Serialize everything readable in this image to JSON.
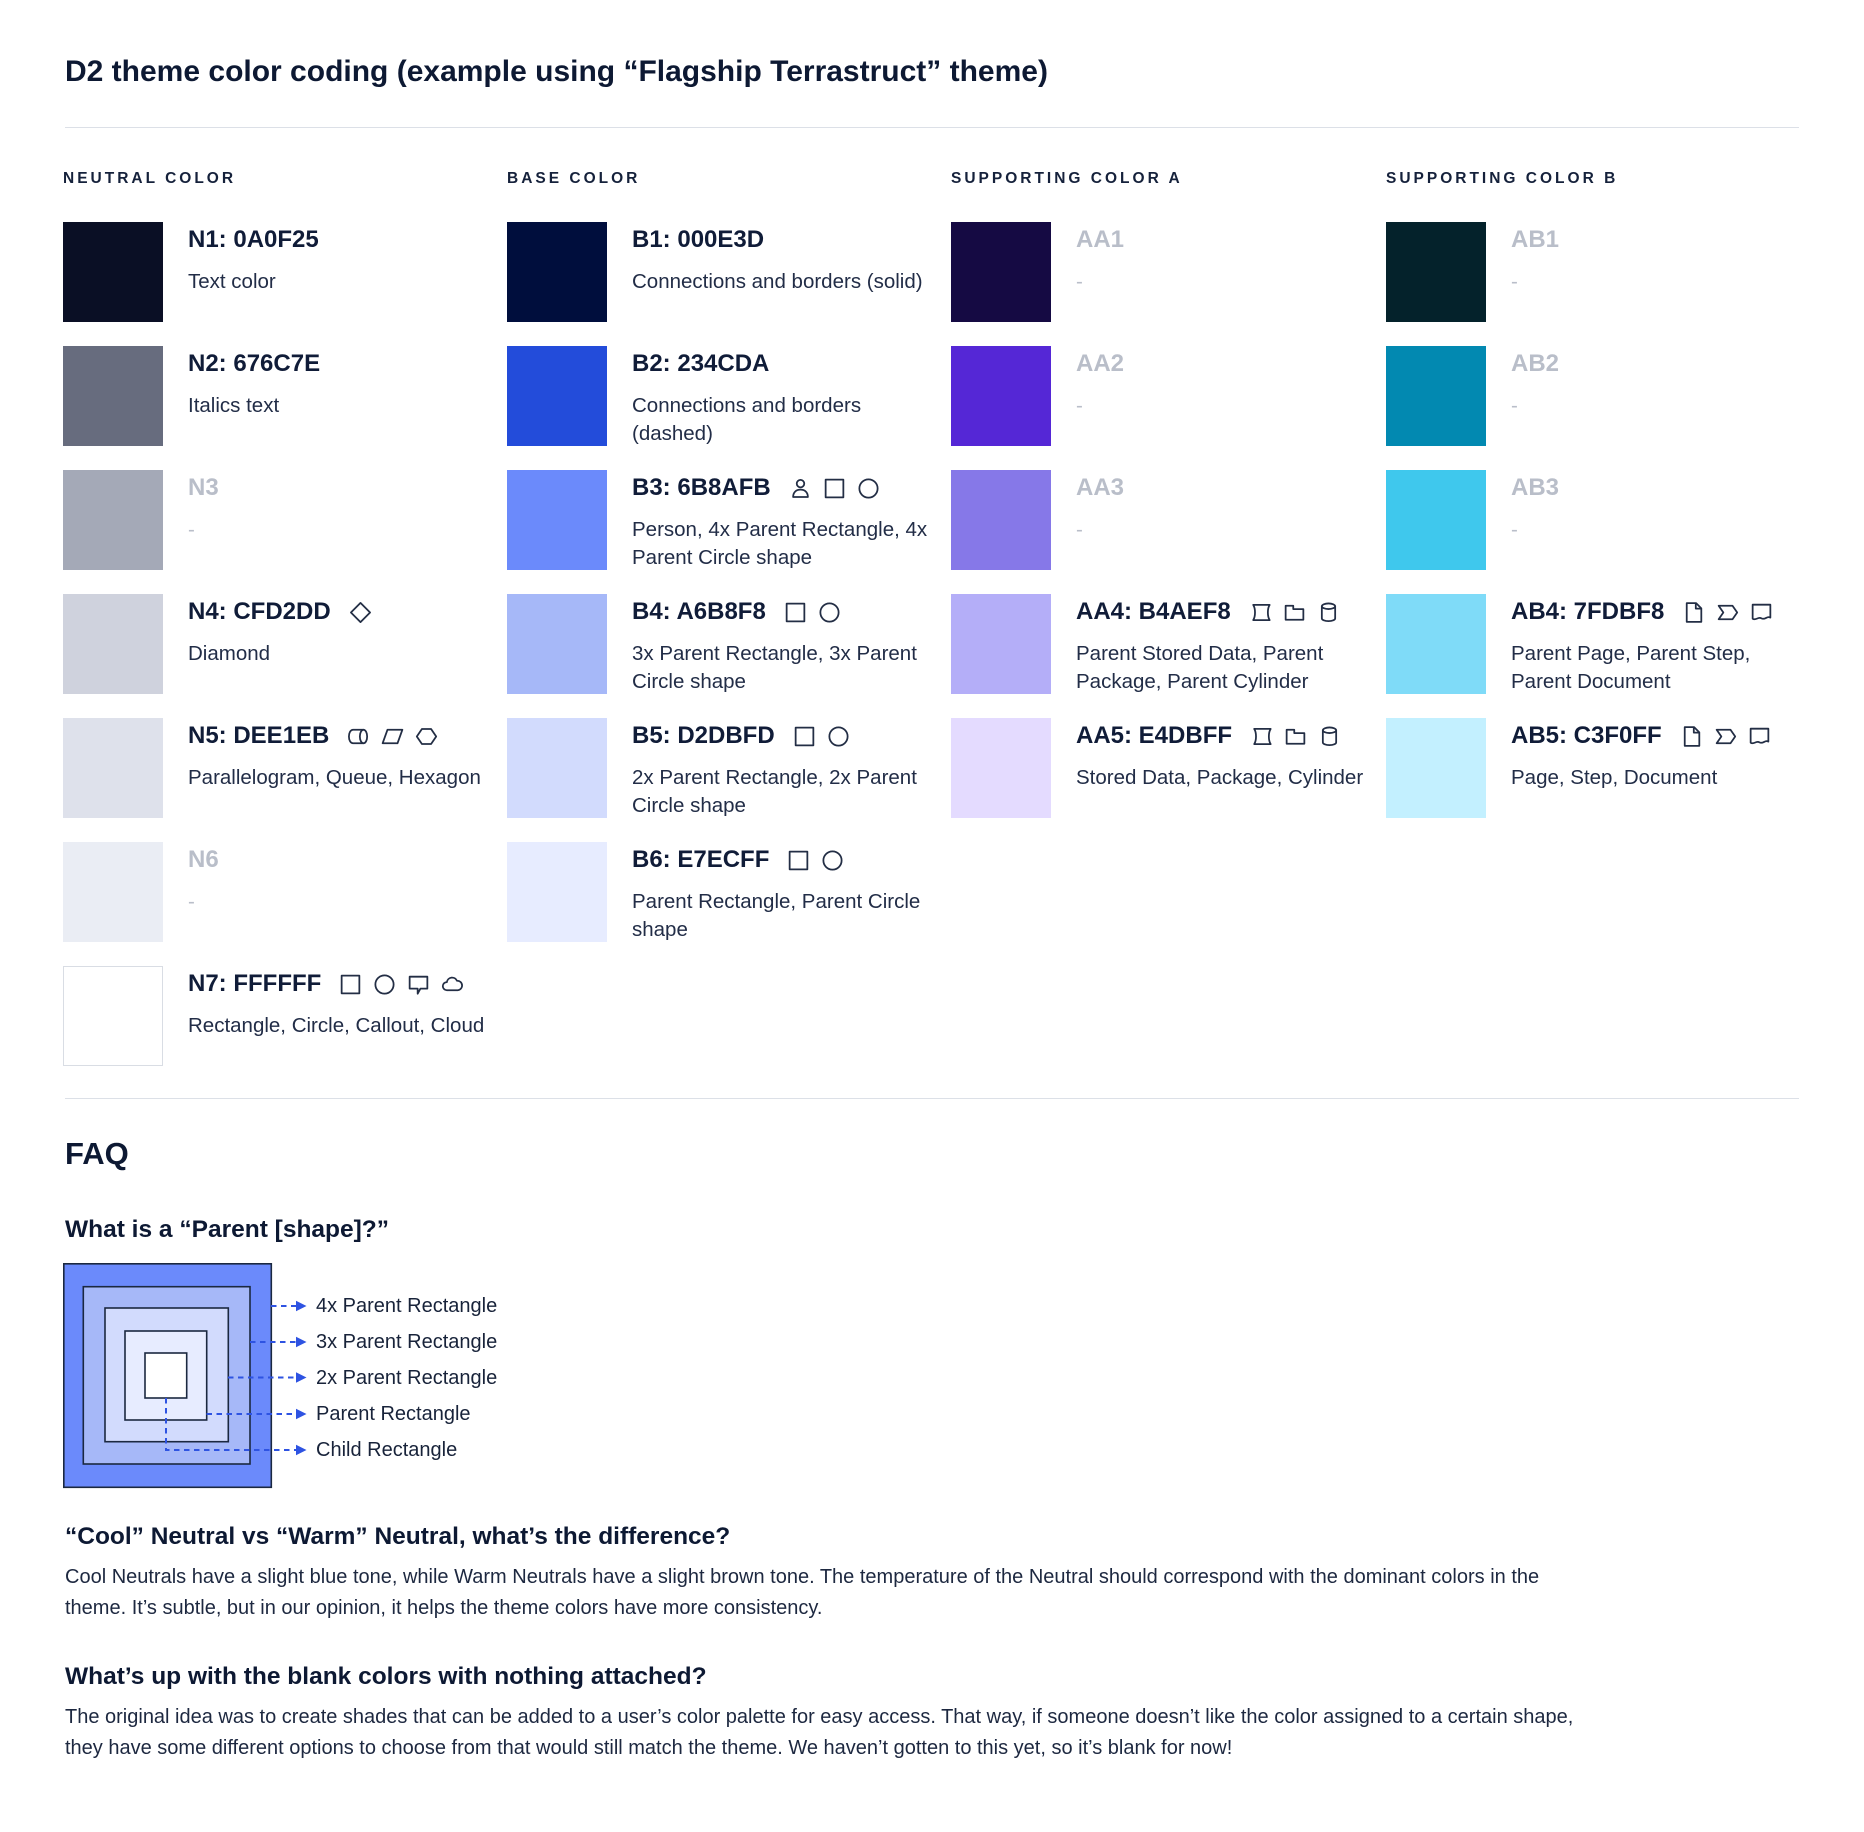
{
  "page": {
    "title": "D2 theme color coding (example using “Flagship Terrastruct” theme)"
  },
  "palette": {
    "columns": [
      {
        "header": "NEUTRAL COLOR",
        "rows": [
          {
            "id": "n1",
            "label": "N1: 0A0F25",
            "hex": "#0A0F25",
            "description": "Text color",
            "icons": [],
            "blank": false
          },
          {
            "id": "n2",
            "label": "N2: 676C7E",
            "hex": "#676C7E",
            "description": "Italics text",
            "icons": [],
            "blank": false
          },
          {
            "id": "n3",
            "label": "N3",
            "hex": "#A4A9B7",
            "description": "-",
            "icons": [],
            "blank": true
          },
          {
            "id": "n4",
            "label": "N4: CFD2DD",
            "hex": "#CFD2DD",
            "description": "Diamond",
            "icons": [
              "diamond"
            ],
            "blank": false
          },
          {
            "id": "n5",
            "label": "N5: DEE1EB",
            "hex": "#DEE1EB",
            "description": "Parallelogram, Queue, Hexagon",
            "icons": [
              "queue",
              "parallelogram",
              "hexagon"
            ],
            "blank": false
          },
          {
            "id": "n6",
            "label": "N6",
            "hex": "#EAEDF4",
            "description": "-",
            "icons": [],
            "blank": true
          },
          {
            "id": "n7",
            "label": "N7: FFFFFF",
            "hex": "#FFFFFF",
            "description": "Rectangle, Circle, Callout, Cloud",
            "icons": [
              "rectangle",
              "circle",
              "callout",
              "cloud"
            ],
            "blank": false
          }
        ]
      },
      {
        "header": "BASE COLOR",
        "rows": [
          {
            "id": "b1",
            "label": "B1: 000E3D",
            "hex": "#000E3D",
            "description": "Connections and borders (solid)",
            "icons": [],
            "blank": false
          },
          {
            "id": "b2",
            "label": "B2: 234CDA",
            "hex": "#234CDA",
            "description": "Connections and borders (dashed)",
            "icons": [],
            "blank": false
          },
          {
            "id": "b3",
            "label": "B3: 6B8AFB",
            "hex": "#6B8AFB",
            "description": "Person, 4x Parent Rectangle, 4x Parent Circle shape",
            "icons": [
              "person",
              "rectangle",
              "circle"
            ],
            "blank": false
          },
          {
            "id": "b4",
            "label": "B4: A6B8F8",
            "hex": "#A6B8F8",
            "description": "3x Parent Rectangle, 3x Parent Circle shape",
            "icons": [
              "rectangle",
              "circle"
            ],
            "blank": false
          },
          {
            "id": "b5",
            "label": "B5: D2DBFD",
            "hex": "#D2DBFD",
            "description": "2x Parent Rectangle, 2x Parent Circle shape",
            "icons": [
              "rectangle",
              "circle"
            ],
            "blank": false
          },
          {
            "id": "b6",
            "label": "B6: E7ECFF",
            "hex": "#E7ECFF",
            "description": "Parent Rectangle, Parent Circle shape",
            "icons": [
              "rectangle",
              "circle"
            ],
            "blank": false
          }
        ]
      },
      {
        "header": "SUPPORTING COLOR A",
        "rows": [
          {
            "id": "aa1",
            "label": "AA1",
            "hex": "#150A43",
            "description": "-",
            "icons": [],
            "blank": true
          },
          {
            "id": "aa2",
            "label": "AA2",
            "hex": "#5527D6",
            "description": "-",
            "icons": [],
            "blank": true
          },
          {
            "id": "aa3",
            "label": "AA3",
            "hex": "#8678E8",
            "description": "-",
            "icons": [],
            "blank": true
          },
          {
            "id": "aa4",
            "label": "AA4: B4AEF8",
            "hex": "#B4AEF8",
            "description": "Parent Stored Data, Parent Package, Parent Cylinder",
            "icons": [
              "stored-data",
              "package",
              "cylinder"
            ],
            "blank": false
          },
          {
            "id": "aa5",
            "label": "AA5: E4DBFF",
            "hex": "#E4DBFF",
            "description": "Stored Data, Package, Cylinder",
            "icons": [
              "stored-data",
              "package",
              "cylinder"
            ],
            "blank": false
          }
        ]
      },
      {
        "header": "SUPPORTING COLOR B",
        "rows": [
          {
            "id": "ab1",
            "label": "AB1",
            "hex": "#04222B",
            "description": "-",
            "icons": [],
            "blank": true
          },
          {
            "id": "ab2",
            "label": "AB2",
            "hex": "#0289B1",
            "description": "-",
            "icons": [],
            "blank": true
          },
          {
            "id": "ab3",
            "label": "AB3",
            "hex": "#3FC8ED",
            "description": "-",
            "icons": [],
            "blank": true
          },
          {
            "id": "ab4",
            "label": "AB4: 7FDBF8",
            "hex": "#7FDBF8",
            "description": "Parent Page, Parent Step, Parent Document",
            "icons": [
              "page",
              "step",
              "document"
            ],
            "blank": false
          },
          {
            "id": "ab5",
            "label": "AB5: C3F0FF",
            "hex": "#C3F0FF",
            "description": "Page, Step, Document",
            "icons": [
              "page",
              "step",
              "document"
            ],
            "blank": false
          }
        ]
      }
    ]
  },
  "faq": {
    "heading": "FAQ",
    "q1": {
      "question": "What is a “Parent [shape]?”",
      "diagram": {
        "labels": [
          "4x Parent Rectangle",
          "3x Parent Rectangle",
          "2x Parent Rectangle",
          "Parent Rectangle",
          "Child Rectangle"
        ],
        "layer_colors": [
          "#6B8AFB",
          "#A6B8F8",
          "#D2DBFD",
          "#E7ECFF",
          "#FFFFFF"
        ],
        "border_color": "#1B2840",
        "dash_color": "#2E53E2"
      }
    },
    "q2": {
      "question": "“Cool” Neutral vs “Warm” Neutral, what’s the difference?",
      "answer": "Cool Neutrals have a slight blue tone, while Warm Neutrals have a slight brown tone. The temperature of the Neutral should correspond with the dominant colors in the theme. It’s subtle, but in our opinion, it helps the theme colors have more consistency."
    },
    "q3": {
      "question": "What’s up with the blank colors with nothing attached?",
      "answer": "The original idea was to create shades that can be added to a user’s color palette for easy access. That way, if someone doesn’t like the color assigned to a certain shape, they have some different options to choose from that would still match the theme. We haven’t gotten to this yet, so it’s blank for now!"
    }
  }
}
